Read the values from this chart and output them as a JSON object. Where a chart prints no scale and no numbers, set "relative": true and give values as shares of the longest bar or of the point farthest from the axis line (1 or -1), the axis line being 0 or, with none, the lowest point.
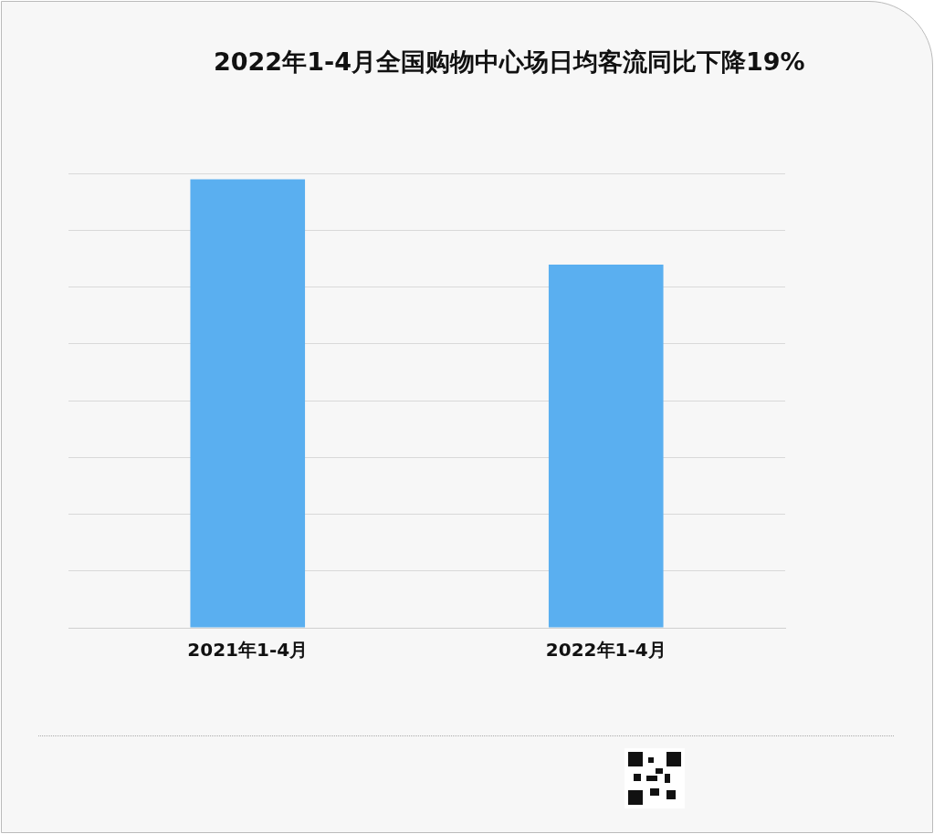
{
  "chart_data": {
    "type": "bar",
    "title": "2022年1-4月全国购物中心场日均客流同比下降19%",
    "categories": [
      "2021年1-4月",
      "2022年1-4月"
    ],
    "values": [
      1,
      0.81
    ],
    "color": "#5aaff0",
    "relative": true,
    "grid": "y"
  }
}
